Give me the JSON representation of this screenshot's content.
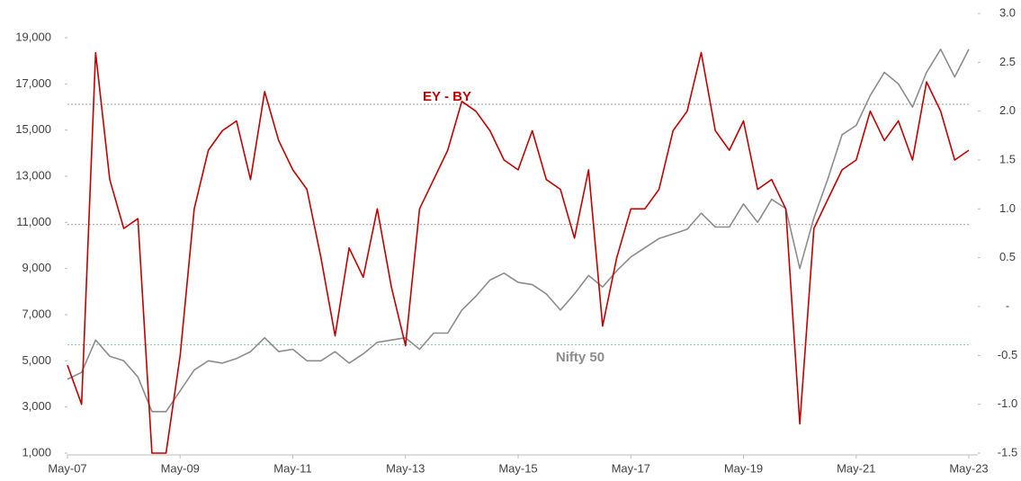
{
  "chart_data": {
    "type": "line",
    "categories": [
      "May-07",
      null,
      null,
      null,
      null,
      null,
      null,
      null,
      "May-09",
      null,
      null,
      null,
      null,
      null,
      null,
      null,
      "May-11",
      null,
      null,
      null,
      null,
      null,
      null,
      null,
      "May-13",
      null,
      null,
      null,
      null,
      null,
      null,
      null,
      "May-15",
      null,
      null,
      null,
      null,
      null,
      null,
      null,
      "May-17",
      null,
      null,
      null,
      null,
      null,
      null,
      null,
      "May-19",
      null,
      null,
      null,
      null,
      null,
      null,
      null,
      "May-21",
      null,
      null,
      null,
      null,
      null,
      null,
      null,
      "May-23"
    ],
    "series": [
      {
        "name": "Nifty 50",
        "color": "#8c8c8c",
        "axis": "y",
        "values": [
          4200,
          4500,
          5900,
          5200,
          5000,
          4300,
          2800,
          2800,
          3700,
          4600,
          5000,
          4900,
          5100,
          5400,
          6000,
          5400,
          5500,
          5000,
          5000,
          5400,
          4900,
          5300,
          5800,
          5900,
          6000,
          5500,
          6200,
          6200,
          7200,
          7800,
          8500,
          8800,
          8400,
          8300,
          7900,
          7200,
          7900,
          8700,
          8200,
          8900,
          9500,
          9900,
          10300,
          10500,
          10700,
          11400,
          10800,
          10800,
          11800,
          11000,
          12000,
          11600,
          9000,
          11200,
          12900,
          14800,
          15200,
          16500,
          17500,
          17000,
          16000,
          17500,
          18500,
          17300,
          18500
        ]
      },
      {
        "name": "EY - BY",
        "color": "#c00000",
        "axis": "y2",
        "values": [
          -0.6,
          -1.0,
          2.6,
          1.3,
          0.8,
          0.9,
          -1.5,
          -1.5,
          -0.5,
          1.0,
          1.6,
          1.8,
          1.9,
          1.3,
          2.2,
          1.7,
          1.4,
          1.2,
          0.5,
          -0.3,
          0.6,
          0.3,
          1.0,
          0.2,
          -0.4,
          1.0,
          1.3,
          1.6,
          2.1,
          2.0,
          1.8,
          1.5,
          1.4,
          1.8,
          1.3,
          1.2,
          0.7,
          1.4,
          -0.2,
          0.5,
          1.0,
          1.0,
          1.2,
          1.8,
          2.0,
          2.6,
          1.8,
          1.6,
          1.9,
          1.2,
          1.3,
          1.0,
          -1.2,
          0.8,
          1.1,
          1.4,
          1.5,
          2.0,
          1.7,
          1.9,
          1.5,
          2.3,
          2.0,
          1.5,
          1.6
        ]
      }
    ],
    "ylim": [
      1000,
      19000
    ],
    "yticks": [
      {
        "value": 1000,
        "label": "1,000"
      },
      {
        "value": 3000,
        "label": "3,000"
      },
      {
        "value": 5000,
        "label": "5,000"
      },
      {
        "value": 7000,
        "label": "7,000"
      },
      {
        "value": 9000,
        "label": "9,000"
      },
      {
        "value": 11000,
        "label": "11,000"
      },
      {
        "value": 13000,
        "label": "13,000"
      },
      {
        "value": 15000,
        "label": "15,000"
      },
      {
        "value": 17000,
        "label": "17,000"
      },
      {
        "value": 19000,
        "label": "19,000"
      }
    ],
    "y2lim": [
      -1.5,
      3.0
    ],
    "y2ticks": [
      -1.5,
      {
        "value": -1,
        "label": "-1.0"
      },
      -0.5,
      {
        "value": 0,
        "label": "-"
      },
      0.5,
      {
        "value": 1,
        "label": "1.0"
      },
      1.5,
      {
        "value": 2,
        "label": "2.0"
      },
      2.5,
      {
        "value": 3,
        "label": "3.0"
      }
    ],
    "reference_lines": [
      {
        "value": 2.07,
        "color": "#9a9a9a"
      },
      {
        "value": 0.84,
        "color": "#9a9a9a"
      },
      {
        "value": -0.39,
        "color": "#7fc4a0"
      }
    ],
    "grid": false
  }
}
